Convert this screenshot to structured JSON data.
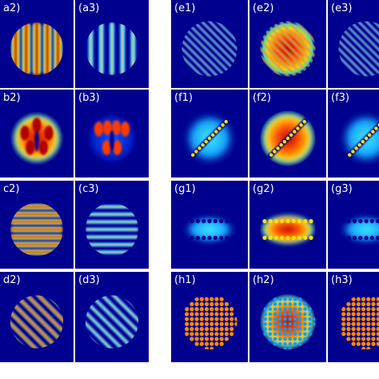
{
  "figure": {
    "colors": {
      "background": "#00008f",
      "divider": "#c8c8e0",
      "page": "#ffffff"
    },
    "colormap": "jet",
    "groups": [
      {
        "name": "left",
        "rows": [
          {
            "cells": [
              {
                "label": "a2)",
                "pattern": "vertical-bars-dense"
              },
              {
                "label": "(a3)",
                "pattern": "vertical-bars-thin"
              }
            ]
          },
          {
            "cells": [
              {
                "label": "b2)",
                "pattern": "blob-lobes-strong"
              },
              {
                "label": "(b3)",
                "pattern": "blob-lobes-split"
              }
            ]
          },
          {
            "cells": [
              {
                "label": "c2)",
                "pattern": "horizontal-bars-dense"
              },
              {
                "label": "(c3)",
                "pattern": "horizontal-bars-thin"
              }
            ]
          },
          {
            "cells": [
              {
                "label": "d2)",
                "pattern": "diagonal-bars-dense"
              },
              {
                "label": "(d3)",
                "pattern": "diagonal-bars-thin"
              }
            ]
          }
        ]
      },
      {
        "name": "right",
        "rows": [
          {
            "cells": [
              {
                "label": "(e1)",
                "pattern": "diagonal-stripes-fine"
              },
              {
                "label": "(e2)",
                "pattern": "diagonal-stripes-fine-strong"
              },
              {
                "label": "(e3)",
                "pattern": "diagonal-stripes-fine"
              }
            ]
          },
          {
            "cells": [
              {
                "label": "(f1)",
                "pattern": "diagonal-vortex-line-halo"
              },
              {
                "label": "(f2)",
                "pattern": "diagonal-vortex-line-hot"
              },
              {
                "label": "(f3)",
                "pattern": "diagonal-vortex-line-halo"
              }
            ]
          },
          {
            "cells": [
              {
                "label": "(g1)",
                "pattern": "horizontal-band-vortices"
              },
              {
                "label": "(g2)",
                "pattern": "horizontal-band-vortices-hot"
              },
              {
                "label": "(g3)",
                "pattern": "horizontal-band-vortices"
              }
            ]
          },
          {
            "cells": [
              {
                "label": "(h1)",
                "pattern": "lattice-dots"
              },
              {
                "label": "(h2)",
                "pattern": "lattice-dots-hot"
              },
              {
                "label": "(h3)",
                "pattern": "lattice-dots"
              }
            ]
          }
        ]
      }
    ]
  }
}
